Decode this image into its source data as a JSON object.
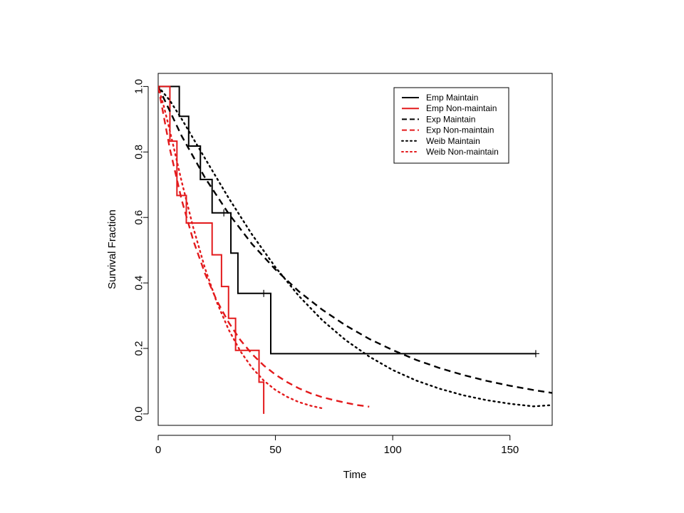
{
  "chart_data": {
    "type": "line",
    "title": "",
    "xlabel": "Time",
    "ylabel": "Survival Fraction",
    "xlim": [
      0,
      168
    ],
    "ylim": [
      -0.035,
      1.04
    ],
    "x_ticks": [
      0,
      50,
      100,
      150
    ],
    "y_ticks": [
      0.0,
      0.2,
      0.4,
      0.6,
      0.8,
      1.0
    ],
    "x_tick_labels": [
      "0",
      "50",
      "100",
      "150"
    ],
    "y_tick_labels": [
      "0.0",
      "0.2",
      "0.4",
      "0.6",
      "0.8",
      "1.0"
    ],
    "grid": false,
    "legend_position": "top-right",
    "series": [
      {
        "name": "Emp Maintain",
        "color": "#000000",
        "dash": "solid",
        "kind": "step",
        "x": [
          0,
          9,
          13,
          18,
          23,
          31,
          34,
          48,
          161
        ],
        "y": [
          1.0,
          0.909,
          0.818,
          0.716,
          0.614,
          0.491,
          0.368,
          0.184,
          0.184
        ],
        "censored": [
          {
            "x": 28,
            "y": 0.614
          },
          {
            "x": 45,
            "y": 0.368
          },
          {
            "x": 161,
            "y": 0.184
          }
        ]
      },
      {
        "name": "Emp Non-maintain",
        "color": "#e31a1c",
        "dash": "solid",
        "kind": "step",
        "x": [
          0,
          5,
          8,
          12,
          23,
          27,
          30,
          33,
          43,
          45
        ],
        "y": [
          1.0,
          0.833,
          0.667,
          0.583,
          0.486,
          0.389,
          0.292,
          0.194,
          0.097,
          0.0
        ],
        "censored": []
      },
      {
        "name": "Exp Maintain",
        "color": "#000000",
        "dash": "dashed",
        "kind": "curve",
        "x": [
          0,
          10,
          20,
          30,
          40,
          50,
          60,
          70,
          80,
          90,
          100,
          110,
          120,
          130,
          140,
          150,
          160,
          168
        ],
        "y": [
          1.0,
          0.849,
          0.721,
          0.612,
          0.519,
          0.441,
          0.374,
          0.318,
          0.27,
          0.229,
          0.195,
          0.165,
          0.14,
          0.119,
          0.101,
          0.086,
          0.073,
          0.064
        ]
      },
      {
        "name": "Exp Non-maintain",
        "color": "#e31a1c",
        "dash": "dashed",
        "kind": "curve",
        "x": [
          0,
          5,
          10,
          15,
          20,
          25,
          30,
          35,
          40,
          45,
          50,
          55,
          60,
          65,
          70,
          75,
          80,
          85,
          90
        ],
        "y": [
          1.0,
          0.809,
          0.654,
          0.529,
          0.428,
          0.346,
          0.28,
          0.226,
          0.183,
          0.148,
          0.12,
          0.097,
          0.078,
          0.063,
          0.051,
          0.042,
          0.034,
          0.027,
          0.022
        ]
      },
      {
        "name": "Weib Maintain",
        "color": "#000000",
        "dash": "dotted",
        "kind": "curve",
        "x": [
          0,
          5,
          10,
          20,
          30,
          40,
          50,
          60,
          70,
          80,
          90,
          100,
          110,
          120,
          130,
          140,
          150,
          160,
          168
        ],
        "y": [
          1.0,
          0.957,
          0.901,
          0.78,
          0.66,
          0.548,
          0.448,
          0.36,
          0.286,
          0.225,
          0.175,
          0.134,
          0.102,
          0.077,
          0.057,
          0.042,
          0.031,
          0.023,
          0.027
        ]
      },
      {
        "name": "Weib Non-maintain",
        "color": "#e31a1c",
        "dash": "dotted",
        "kind": "curve",
        "x": [
          0,
          2.5,
          5,
          10,
          15,
          20,
          25,
          30,
          35,
          40,
          45,
          50,
          55,
          60,
          65,
          70
        ],
        "y": [
          1.0,
          0.937,
          0.864,
          0.71,
          0.568,
          0.444,
          0.341,
          0.258,
          0.192,
          0.141,
          0.102,
          0.073,
          0.052,
          0.036,
          0.025,
          0.017
        ]
      }
    ]
  }
}
